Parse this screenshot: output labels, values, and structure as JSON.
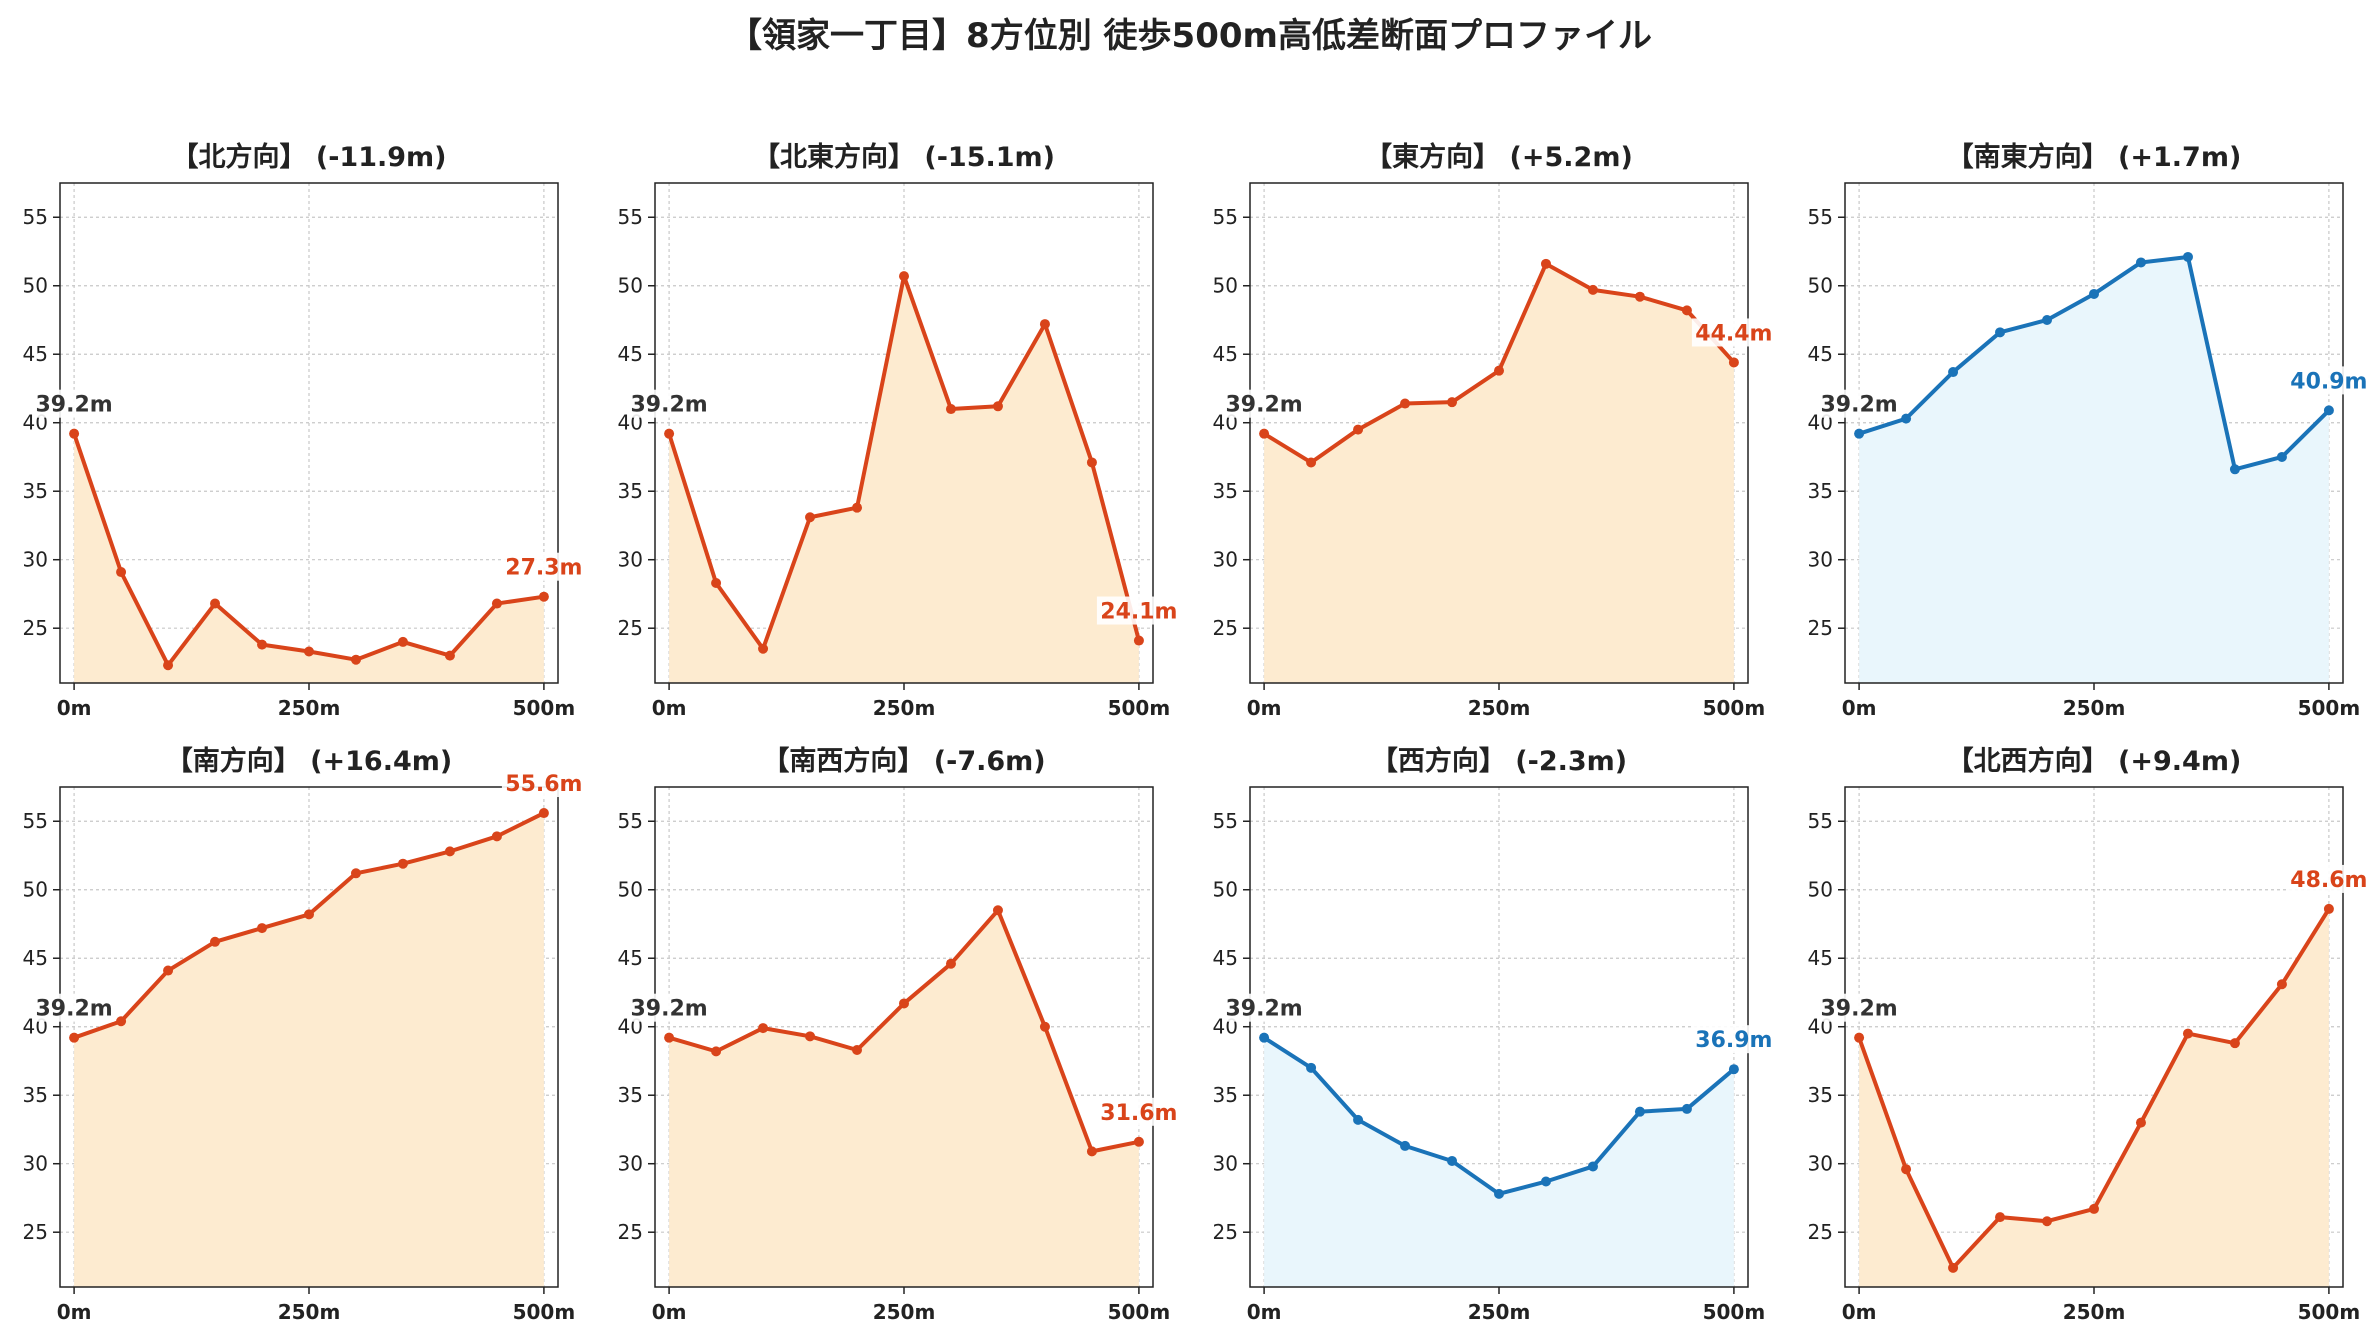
{
  "title": "【領家一丁目】8方位別 徒歩500m高低差断面プロファイル",
  "colors": {
    "descent_line": "#d9441a",
    "descent_fill": "#fdebd0",
    "ascent_line": "#1a73b8",
    "ascent_fill": "#e9f6fc",
    "start_label": "#333333",
    "grid": "#c8c8c8"
  },
  "chart_data": [
    {
      "type": "area",
      "title": "【北方向】 (-11.9m)",
      "x": [
        0,
        50,
        100,
        150,
        200,
        250,
        300,
        350,
        400,
        450,
        500
      ],
      "y": [
        39.2,
        29.1,
        22.3,
        26.8,
        23.8,
        23.3,
        22.7,
        24.0,
        23.0,
        26.8,
        27.3
      ],
      "xticks": [
        "0m",
        "250m",
        "500m"
      ],
      "yticks": [
        25,
        30,
        35,
        40,
        45,
        50,
        55
      ],
      "ylim": [
        21,
        57.5
      ],
      "xlim": [
        -15,
        515
      ],
      "grid": true,
      "style": "orange",
      "start_label": "39.2m",
      "end_label": "27.3m"
    },
    {
      "type": "area",
      "title": "【北東方向】 (-15.1m)",
      "x": [
        0,
        50,
        100,
        150,
        200,
        250,
        300,
        350,
        400,
        450,
        500
      ],
      "y": [
        39.2,
        28.3,
        23.5,
        33.1,
        33.8,
        50.7,
        41.0,
        41.2,
        47.2,
        37.1,
        24.1
      ],
      "xticks": [
        "0m",
        "250m",
        "500m"
      ],
      "yticks": [
        25,
        30,
        35,
        40,
        45,
        50,
        55
      ],
      "ylim": [
        21,
        57.5
      ],
      "xlim": [
        -15,
        515
      ],
      "grid": true,
      "style": "orange",
      "start_label": "39.2m",
      "end_label": "24.1m"
    },
    {
      "type": "area",
      "title": "【東方向】 (+5.2m)",
      "x": [
        0,
        50,
        100,
        150,
        200,
        250,
        300,
        350,
        400,
        450,
        500
      ],
      "y": [
        39.2,
        37.1,
        39.5,
        41.4,
        41.5,
        43.8,
        51.6,
        49.7,
        49.2,
        48.2,
        44.4
      ],
      "xticks": [
        "0m",
        "250m",
        "500m"
      ],
      "yticks": [
        25,
        30,
        35,
        40,
        45,
        50,
        55
      ],
      "ylim": [
        21,
        57.5
      ],
      "xlim": [
        -15,
        515
      ],
      "grid": true,
      "style": "orange",
      "start_label": "39.2m",
      "end_label": "44.4m"
    },
    {
      "type": "area",
      "title": "【南東方向】 (+1.7m)",
      "x": [
        0,
        50,
        100,
        150,
        200,
        250,
        300,
        350,
        400,
        450,
        500
      ],
      "y": [
        39.2,
        40.3,
        43.7,
        46.6,
        47.5,
        49.4,
        51.7,
        52.1,
        36.6,
        37.5,
        40.9
      ],
      "xticks": [
        "0m",
        "250m",
        "500m"
      ],
      "yticks": [
        25,
        30,
        35,
        40,
        45,
        50,
        55
      ],
      "ylim": [
        21,
        57.5
      ],
      "xlim": [
        -15,
        515
      ],
      "grid": true,
      "style": "blue",
      "start_label": "39.2m",
      "end_label": "40.9m"
    },
    {
      "type": "area",
      "title": "【南方向】 (+16.4m)",
      "x": [
        0,
        50,
        100,
        150,
        200,
        250,
        300,
        350,
        400,
        450,
        500
      ],
      "y": [
        39.2,
        40.4,
        44.1,
        46.2,
        47.2,
        48.2,
        51.2,
        51.9,
        52.8,
        53.9,
        55.6
      ],
      "xticks": [
        "0m",
        "250m",
        "500m"
      ],
      "yticks": [
        25,
        30,
        35,
        40,
        45,
        50,
        55
      ],
      "ylim": [
        21,
        57.5
      ],
      "xlim": [
        -15,
        515
      ],
      "grid": true,
      "style": "orange",
      "start_label": "39.2m",
      "end_label": "55.6m"
    },
    {
      "type": "area",
      "title": "【南西方向】 (-7.6m)",
      "x": [
        0,
        50,
        100,
        150,
        200,
        250,
        300,
        350,
        400,
        450,
        500
      ],
      "y": [
        39.2,
        38.2,
        39.9,
        39.3,
        38.3,
        41.7,
        44.6,
        48.5,
        40.0,
        30.9,
        31.6
      ],
      "xticks": [
        "0m",
        "250m",
        "500m"
      ],
      "yticks": [
        25,
        30,
        35,
        40,
        45,
        50,
        55
      ],
      "ylim": [
        21,
        57.5
      ],
      "xlim": [
        -15,
        515
      ],
      "grid": true,
      "style": "orange",
      "start_label": "39.2m",
      "end_label": "31.6m"
    },
    {
      "type": "area",
      "title": "【西方向】 (-2.3m)",
      "x": [
        0,
        50,
        100,
        150,
        200,
        250,
        300,
        350,
        400,
        450,
        500
      ],
      "y": [
        39.2,
        37.0,
        33.2,
        31.3,
        30.2,
        27.8,
        28.7,
        29.8,
        33.8,
        34.0,
        36.9
      ],
      "xticks": [
        "0m",
        "250m",
        "500m"
      ],
      "yticks": [
        25,
        30,
        35,
        40,
        45,
        50,
        55
      ],
      "ylim": [
        21,
        57.5
      ],
      "xlim": [
        -15,
        515
      ],
      "grid": true,
      "style": "blue",
      "start_label": "39.2m",
      "end_label": "36.9m"
    },
    {
      "type": "area",
      "title": "【北西方向】 (+9.4m)",
      "x": [
        0,
        50,
        100,
        150,
        200,
        250,
        300,
        350,
        400,
        450,
        500
      ],
      "y": [
        39.2,
        29.6,
        22.4,
        26.1,
        25.8,
        26.7,
        33.0,
        39.5,
        38.8,
        43.1,
        48.6
      ],
      "xticks": [
        "0m",
        "250m",
        "500m"
      ],
      "yticks": [
        25,
        30,
        35,
        40,
        45,
        50,
        55
      ],
      "ylim": [
        21,
        57.5
      ],
      "xlim": [
        -15,
        515
      ],
      "grid": true,
      "style": "orange",
      "start_label": "39.2m",
      "end_label": "48.6m"
    }
  ]
}
